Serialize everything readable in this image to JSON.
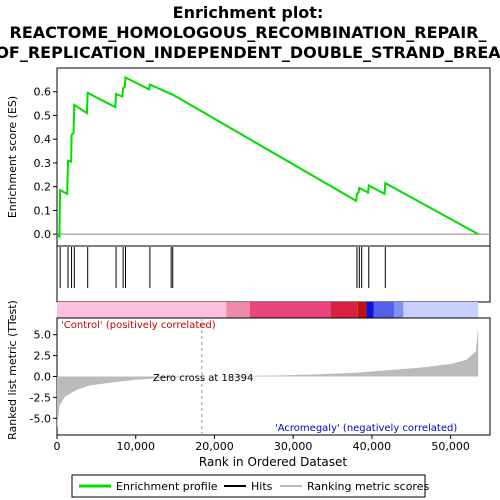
{
  "chart_data": {
    "type": "line",
    "title_line1": "Enrichment plot:",
    "title_line2": "REACTOME_HOMOLOGOUS_RECOMBINATION_REPAIR_",
    "title_line3": "OF_REPLICATION_INDEPENDENT_DOUBLE_STRAND_BREA",
    "es_ylabel": "Enrichment score (ES)",
    "metric_ylabel": "Ranked list metric (TTest)",
    "xlabel": "Rank in Ordered Dataset",
    "xlim": [
      0,
      55000
    ],
    "es_ylim": [
      -0.05,
      0.7
    ],
    "metric_ylim": [
      -7,
      7
    ],
    "x_ticks": [
      0,
      10000,
      20000,
      30000,
      40000,
      50000
    ],
    "x_tick_labels": [
      "0",
      "10,000",
      "20,000",
      "30,000",
      "40,000",
      "50,000"
    ],
    "es_ticks": [
      0.0,
      0.1,
      0.2,
      0.3,
      0.4,
      0.5,
      0.6
    ],
    "es_tick_labels": [
      "0.0",
      "0.1",
      "0.2",
      "0.3",
      "0.4",
      "0.5",
      "0.6"
    ],
    "metric_ticks": [
      5.0,
      2.5,
      0.0,
      -2.5,
      -5.0
    ],
    "metric_tick_labels": [
      "5.0",
      "2.5",
      "0.0",
      "-2.5",
      "-5.0"
    ],
    "enrichment_profile": {
      "name": "Enrichment profile",
      "color": "#00dd00",
      "x": [
        0,
        300,
        400,
        1300,
        1400,
        1800,
        1850,
        2100,
        2200,
        3800,
        3900,
        7400,
        7500,
        8300,
        8400,
        8600,
        8700,
        11700,
        11800,
        14500,
        14600,
        38000,
        38100,
        38300,
        38400,
        39500,
        39600,
        41600,
        41700,
        53500
      ],
      "y": [
        0.0,
        -0.01,
        0.185,
        0.17,
        0.31,
        0.305,
        0.42,
        0.425,
        0.545,
        0.51,
        0.595,
        0.535,
        0.59,
        0.58,
        0.615,
        0.62,
        0.66,
        0.61,
        0.63,
        0.59,
        0.59,
        0.14,
        0.17,
        0.175,
        0.195,
        0.175,
        0.205,
        0.17,
        0.215,
        0.0
      ]
    },
    "hits": {
      "name": "Hits",
      "x": [
        400,
        1400,
        1850,
        2200,
        3900,
        7500,
        8400,
        8700,
        11800,
        14500,
        14700,
        38100,
        38400,
        38700,
        39600,
        41700
      ]
    },
    "ranking_metric": {
      "name": "Ranking metric scores",
      "x": [
        0,
        300,
        1000,
        2500,
        4000,
        7000,
        10000,
        13000,
        16000,
        18394,
        22000,
        28000,
        33000,
        38000,
        42000,
        46000,
        50000,
        52000,
        53200,
        53500
      ],
      "y": [
        -6.3,
        -3.5,
        -2.4,
        -1.6,
        -1.1,
        -0.7,
        -0.4,
        -0.2,
        -0.07,
        0.0,
        0.05,
        0.12,
        0.25,
        0.45,
        0.75,
        1.05,
        1.5,
        2.0,
        3.0,
        6.0
      ]
    },
    "zero_cross": 18394,
    "zero_cross_label": "Zero cross at 18394",
    "positive_label": "'Control' (positively correlated)",
    "negative_label": "'Acromegaly' (negatively correlated)",
    "legend": {
      "placement": "bottom",
      "items": [
        {
          "label": "Enrichment profile",
          "color": "#00dd00"
        },
        {
          "label": "Hits",
          "color": "#000000"
        },
        {
          "label": "Ranking metric scores",
          "color": "#bbbbbb"
        }
      ]
    },
    "bar_segments": [
      {
        "x0": 0,
        "x1": 21500,
        "color": "#ffc0e0"
      },
      {
        "x0": 21500,
        "x1": 24500,
        "color": "#f088a8"
      },
      {
        "x0": 24500,
        "x1": 34800,
        "color": "#e8457a"
      },
      {
        "x0": 34800,
        "x1": 38200,
        "color": "#d82040"
      },
      {
        "x0": 38200,
        "x1": 39300,
        "color": "#c01010"
      },
      {
        "x0": 39300,
        "x1": 40200,
        "color": "#1010d8"
      },
      {
        "x0": 40200,
        "x1": 42800,
        "color": "#5060e8"
      },
      {
        "x0": 42800,
        "x1": 44000,
        "color": "#8090f0"
      },
      {
        "x0": 44000,
        "x1": 53500,
        "color": "#c8d0ff"
      }
    ]
  }
}
